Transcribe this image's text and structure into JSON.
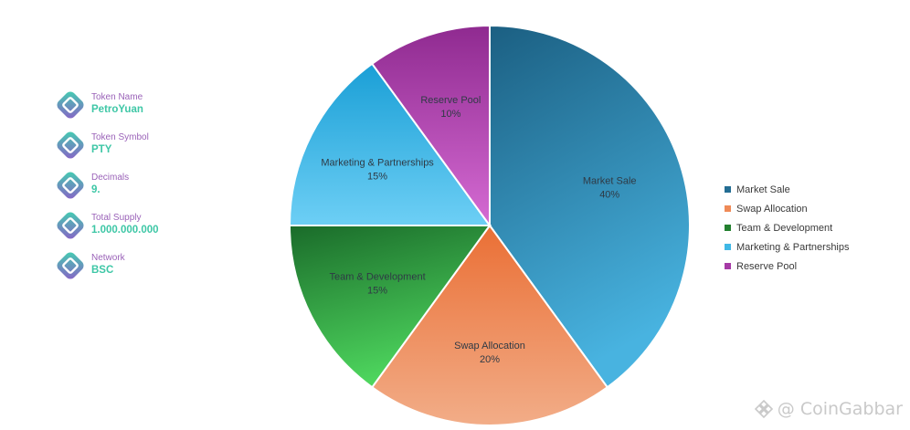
{
  "token_info": [
    {
      "label": "Token Name",
      "value": "PetroYuan"
    },
    {
      "label": "Token Symbol",
      "value": "PTY"
    },
    {
      "label": "Decimals",
      "value": "9."
    },
    {
      "label": "Total Supply",
      "value": "1.000.000.000"
    },
    {
      "label": "Network",
      "value": "BSC"
    }
  ],
  "chart_data": {
    "type": "pie",
    "title": "",
    "legend_position": "right",
    "slices": [
      {
        "name": "Market Sale",
        "value": 40,
        "label": "40%",
        "color_start": "#1b5f82",
        "color_end": "#48b3e0"
      },
      {
        "name": "Swap Allocation",
        "value": 20,
        "label": "20%",
        "color_start": "#ea6f35",
        "color_end": "#f2ad88"
      },
      {
        "name": "Team & Development",
        "value": 15,
        "label": "15%",
        "color_start": "#1a6b2a",
        "color_end": "#4ed65e"
      },
      {
        "name": "Marketing & Partnerships",
        "value": 15,
        "label": "15%",
        "color_start": "#1a9fd6",
        "color_end": "#6dcff5"
      },
      {
        "name": "Reserve Pool",
        "value": 10,
        "label": "10%",
        "color_start": "#8f2a90",
        "color_end": "#d56bd3"
      }
    ],
    "legend_colors": [
      "#236d93",
      "#ef8a57",
      "#23802f",
      "#3fb8e6",
      "#a63aa6"
    ]
  },
  "watermark": {
    "text": "CoinGabbar"
  }
}
